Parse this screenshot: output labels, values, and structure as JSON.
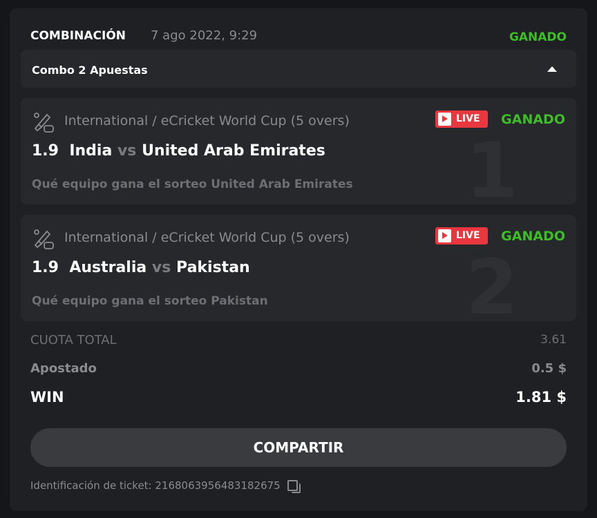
{
  "header": {
    "title": "COMBINACIÓN",
    "date": "7 ago 2022, 9:29",
    "status": "GANADO"
  },
  "combo": {
    "label": "Combo 2 Apuestas",
    "expand_icon": "triangle-up-icon"
  },
  "bets": [
    {
      "league": "International / eCricket World Cup (5 overs)",
      "live": "LIVE",
      "status": "GANADO",
      "odds": "1.9",
      "home": "India",
      "vs": "vs",
      "away": "United Arab Emirates",
      "pick": "Qué equipo gana el sorteo United Arab Emirates",
      "index": "1"
    },
    {
      "league": "International / eCricket World Cup (5 overs)",
      "live": "LIVE",
      "status": "GANADO",
      "odds": "1.9",
      "home": "Australia",
      "vs": "vs",
      "away": "Pakistan",
      "pick": "Qué equipo gana el sorteo Pakistan",
      "index": "2"
    }
  ],
  "summary": {
    "total_odds_label": "CUOTA TOTAL",
    "total_odds": "3.61",
    "staked_label": "Apostado",
    "staked": "0.5 $",
    "win_label": "WIN",
    "win": "1.81 $"
  },
  "share_button": "COMPARTIR",
  "ticket": {
    "label": "Identificación de ticket: 2168063956483182675"
  },
  "colors": {
    "win_green": "#3dbd27",
    "live_red": "#e8373f"
  }
}
